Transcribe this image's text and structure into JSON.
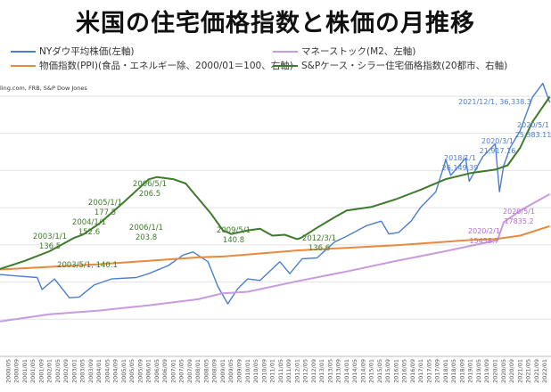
{
  "title": "米国の住宅価格指数と株価の月推移",
  "source": "ling.com, FRB, S&P Dow Jones",
  "legend": [
    {
      "label": "NYダウ平均株価(左軸)",
      "color": "#4a7fd0"
    },
    {
      "label": "マネーストック(M2、左軸)",
      "color": "#c89ae0"
    },
    {
      "label": "物価指数(PPI)(食品・エネルギー除、2000/01＝100、右軸)",
      "color": "#e88a3c"
    },
    {
      "label": "S&Pケース・シラー住宅価格指数(20都市、右軸)",
      "color": "#3e7a2c"
    }
  ],
  "chart_data": {
    "type": "line",
    "x_range": [
      "2000/01",
      "2022/03"
    ],
    "x_ticks": [
      "2000/01",
      "2000/05",
      "2000/09",
      "2001/01",
      "2001/05",
      "2001/09",
      "2002/01",
      "2002/05",
      "2002/09",
      "2003/01",
      "2003/05",
      "2003/09",
      "2004/01",
      "2004/05",
      "2004/09",
      "2005/01",
      "2005/05",
      "2005/09",
      "2006/01",
      "2006/05",
      "2006/09",
      "2007/01",
      "2007/05",
      "2007/09",
      "2008/01",
      "2008/05",
      "2008/09",
      "2009/01",
      "2009/05",
      "2009/09",
      "2010/01",
      "2010/05",
      "2010/09",
      "2011/01",
      "2011/05",
      "2011/09",
      "2012/01",
      "2012/05",
      "2012/09",
      "2013/01",
      "2013/05",
      "2013/09",
      "2014/01",
      "2014/05",
      "2014/09",
      "2015/01",
      "2015/05",
      "2015/09",
      "2016/01",
      "2016/05",
      "2016/09",
      "2017/01",
      "2017/05",
      "2017/09",
      "2018/01",
      "2018/05",
      "2018/09",
      "2019/01",
      "2019/05",
      "2019/09",
      "2020/01",
      "2020/05",
      "2020/09",
      "2021/01",
      "2021/05",
      "2021/09",
      "2022/01"
    ],
    "left_axis_range": [
      0,
      37000
    ],
    "right_axis_range": [
      0,
      320
    ],
    "grid": true,
    "series": [
      {
        "name": "NYダウ平均株価(左軸)",
        "axis": "left",
        "color": "#4a7fd0",
        "points": [
          [
            2000.0,
            10900
          ],
          [
            2000.7,
            10700
          ],
          [
            2001.5,
            10500
          ],
          [
            2001.7,
            8900
          ],
          [
            2002.2,
            10300
          ],
          [
            2002.8,
            7800
          ],
          [
            2003.2,
            7900
          ],
          [
            2003.8,
            9500
          ],
          [
            2004.5,
            10300
          ],
          [
            2005.5,
            10500
          ],
          [
            2006.0,
            11000
          ],
          [
            2006.8,
            12100
          ],
          [
            2007.4,
            13500
          ],
          [
            2007.8,
            13900
          ],
          [
            2008.4,
            12600
          ],
          [
            2008.8,
            9300
          ],
          [
            2009.2,
            7000
          ],
          [
            2009.6,
            9000
          ],
          [
            2010.0,
            10300
          ],
          [
            2010.5,
            10100
          ],
          [
            2011.3,
            12600
          ],
          [
            2011.7,
            11000
          ],
          [
            2012.2,
            13000
          ],
          [
            2012.8,
            13100
          ],
          [
            2013.5,
            15200
          ],
          [
            2014.0,
            16000
          ],
          [
            2014.8,
            17400
          ],
          [
            2015.4,
            18000
          ],
          [
            2015.7,
            16300
          ],
          [
            2016.1,
            16500
          ],
          [
            2016.6,
            18000
          ],
          [
            2017.0,
            19900
          ],
          [
            2017.6,
            21900
          ],
          [
            2018.0,
            26149.39
          ],
          [
            2018.2,
            24100
          ],
          [
            2018.8,
            26400
          ],
          [
            2018.95,
            23300
          ],
          [
            2019.5,
            26600
          ],
          [
            2020.0,
            28300
          ],
          [
            2020.17,
            21917.16
          ],
          [
            2020.34,
            25383.11
          ],
          [
            2020.6,
            27800
          ],
          [
            2021.0,
            30000
          ],
          [
            2021.5,
            34500
          ],
          [
            2021.92,
            36338.3
          ],
          [
            2022.2,
            33800
          ]
        ]
      },
      {
        "name": "マネーストック(M2、左軸)",
        "axis": "left",
        "color": "#c89ae0",
        "points": [
          [
            2000.0,
            4650
          ],
          [
            2002.0,
            5600
          ],
          [
            2004.0,
            6100
          ],
          [
            2006.0,
            6800
          ],
          [
            2008.0,
            7600
          ],
          [
            2009.0,
            8400
          ],
          [
            2010.0,
            8600
          ],
          [
            2012.0,
            10000
          ],
          [
            2014.0,
            11300
          ],
          [
            2016.0,
            12700
          ],
          [
            2018.0,
            14000
          ],
          [
            2019.0,
            14700
          ],
          [
            2020.09,
            15458.7
          ],
          [
            2020.34,
            17835.2
          ],
          [
            2021.0,
            19400
          ],
          [
            2022.2,
            21600
          ]
        ]
      },
      {
        "name": "物価指数(PPI)(食品・エネルギー除、2000/01＝100、右軸)",
        "axis": "right",
        "color": "#e88a3c",
        "points": [
          [
            2000.0,
            100
          ],
          [
            2004.0,
            106
          ],
          [
            2008.0,
            114
          ],
          [
            2009.0,
            115
          ],
          [
            2012.0,
            122
          ],
          [
            2016.0,
            128
          ],
          [
            2019.0,
            134
          ],
          [
            2020.0,
            135
          ],
          [
            2021.0,
            139
          ],
          [
            2022.2,
            150
          ]
        ]
      },
      {
        "name": "S&Pケース・シラー住宅価格指数(20都市、右軸)",
        "axis": "right",
        "color": "#3e7a2c",
        "points": [
          [
            2000.0,
            100.6
          ],
          [
            2001.0,
            110
          ],
          [
            2002.0,
            121
          ],
          [
            2003.0,
            136.5
          ],
          [
            2003.34,
            140.1
          ],
          [
            2004.0,
            152.6
          ],
          [
            2005.0,
            177.5
          ],
          [
            2006.0,
            203.8
          ],
          [
            2006.34,
            206.5
          ],
          [
            2007.0,
            204
          ],
          [
            2007.5,
            199
          ],
          [
            2008.0,
            182
          ],
          [
            2008.5,
            165
          ],
          [
            2009.0,
            145
          ],
          [
            2009.34,
            140.8
          ],
          [
            2010.0,
            145
          ],
          [
            2010.5,
            147
          ],
          [
            2011.0,
            139
          ],
          [
            2011.5,
            140
          ],
          [
            2012.0,
            135
          ],
          [
            2012.17,
            136.6
          ],
          [
            2012.8,
            148
          ],
          [
            2013.5,
            160
          ],
          [
            2014.0,
            168
          ],
          [
            2015.0,
            172
          ],
          [
            2016.0,
            181
          ],
          [
            2017.0,
            192
          ],
          [
            2018.0,
            204
          ],
          [
            2019.0,
            211
          ],
          [
            2020.0,
            215
          ],
          [
            2020.5,
            220
          ],
          [
            2021.0,
            240
          ],
          [
            2021.5,
            270
          ],
          [
            2022.2,
            299
          ]
        ]
      }
    ],
    "annotations": [
      {
        "text": "2021/12/1, 36,338.3",
        "color": "#4a7fd0"
      },
      {
        "text": "2020/5/1",
        "text2": "25,383.11",
        "color": "#4a7fd0"
      },
      {
        "text": "2020/3/1",
        "text2": "21,917.16",
        "color": "#4a7fd0"
      },
      {
        "text": "2018/1/1",
        "text2": "26,149.39",
        "color": "#4a7fd0"
      },
      {
        "text": "2020/5/1",
        "text2": "17835.2",
        "color": "#b66ad3"
      },
      {
        "text": "2020/2/1",
        "text2": "15458.7",
        "color": "#b66ad3"
      },
      {
        "text": "2006/5/1",
        "text2": "206.5",
        "color": "#3e7a2c"
      },
      {
        "text": "2005/1/1",
        "text2": "177.5",
        "color": "#3e7a2c"
      },
      {
        "text": "2004/1/1",
        "text2": "152.6",
        "color": "#3e7a2c"
      },
      {
        "text": "2006/1/1",
        "text2": "203.8",
        "color": "#3e7a2c"
      },
      {
        "text": "2003/1/1",
        "text2": "136.5",
        "color": "#3e7a2c"
      },
      {
        "text": "2003/5/1, 140.1",
        "color": "#3e7a2c"
      },
      {
        "text": "2009/5/1",
        "text2": "140.8",
        "color": "#3e7a2c"
      },
      {
        "text": "2012/3/1",
        "text2": "136.6",
        "color": "#3e7a2c"
      }
    ]
  }
}
